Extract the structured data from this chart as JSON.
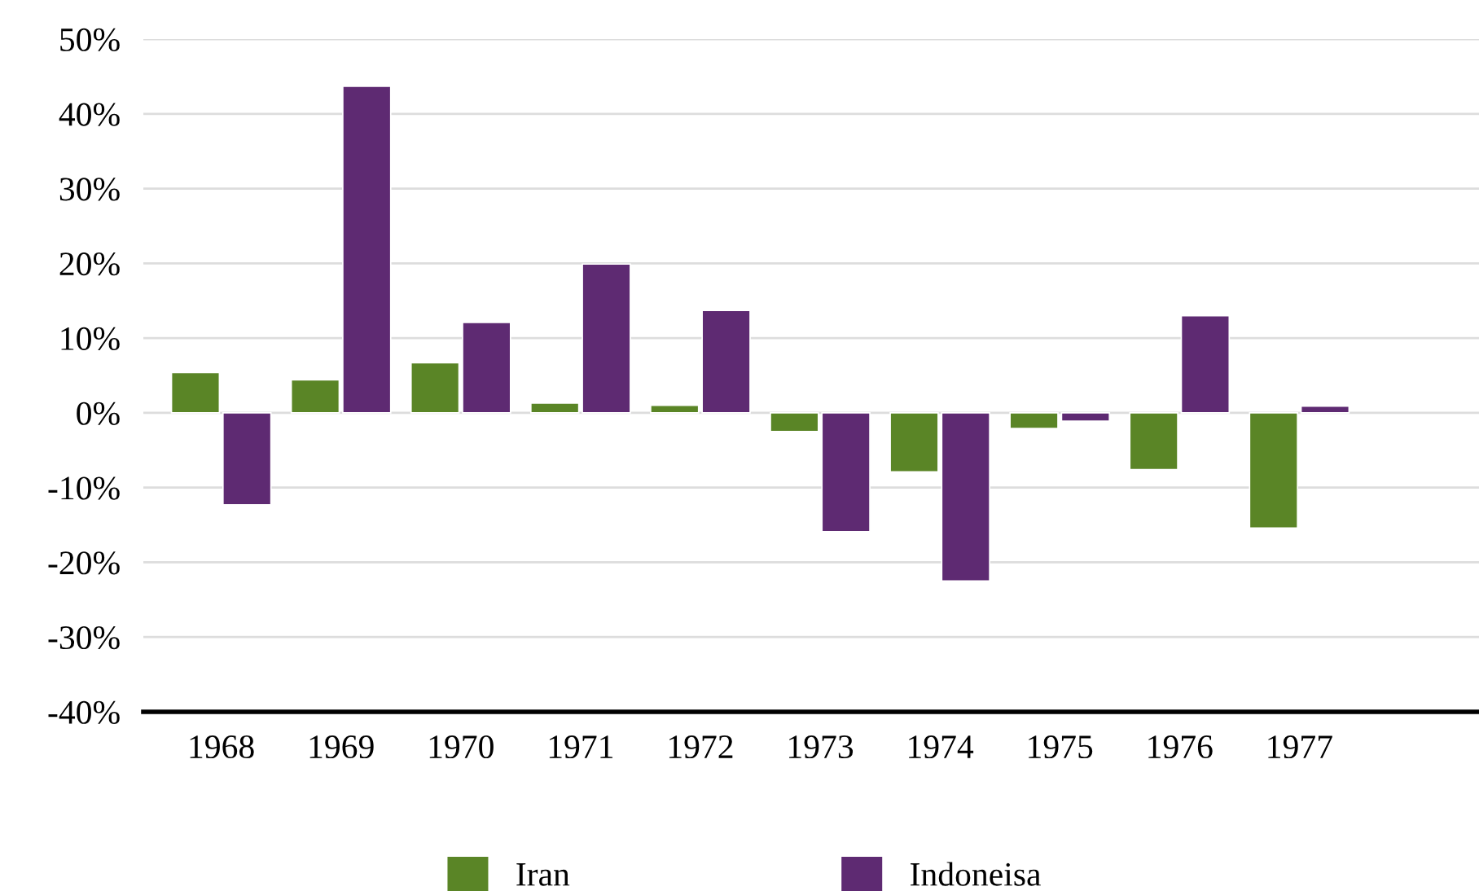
{
  "chart_data": {
    "type": "bar",
    "categories": [
      "1968",
      "1969",
      "1970",
      "1971",
      "1972",
      "1973",
      "1974",
      "1975",
      "1976",
      "1977"
    ],
    "series": [
      {
        "name": "Iran",
        "color": "#5a8526",
        "values": [
          5.4,
          4.4,
          6.7,
          1.3,
          1.0,
          -2.5,
          -7.9,
          -2.1,
          -7.6,
          -15.4
        ]
      },
      {
        "name": "Indoneisa",
        "color": "#5e2a72",
        "values": [
          -12.3,
          43.7,
          12.1,
          19.9,
          13.7,
          -15.9,
          -22.5,
          -1.1,
          13.0,
          0.9
        ]
      }
    ],
    "ylim": [
      -40,
      50
    ],
    "yticks": [
      {
        "value": -40,
        "label": "-40%"
      },
      {
        "value": -30,
        "label": "-30%"
      },
      {
        "value": -20,
        "label": "-20%"
      },
      {
        "value": -10,
        "label": "-10%"
      },
      {
        "value": 0,
        "label": "0%"
      },
      {
        "value": 10,
        "label": "10%"
      },
      {
        "value": 20,
        "label": "20%"
      },
      {
        "value": 30,
        "label": "30%"
      },
      {
        "value": 40,
        "label": "40%"
      },
      {
        "value": 50,
        "label": "50%"
      }
    ],
    "grid": "y",
    "legend": "bottom"
  }
}
